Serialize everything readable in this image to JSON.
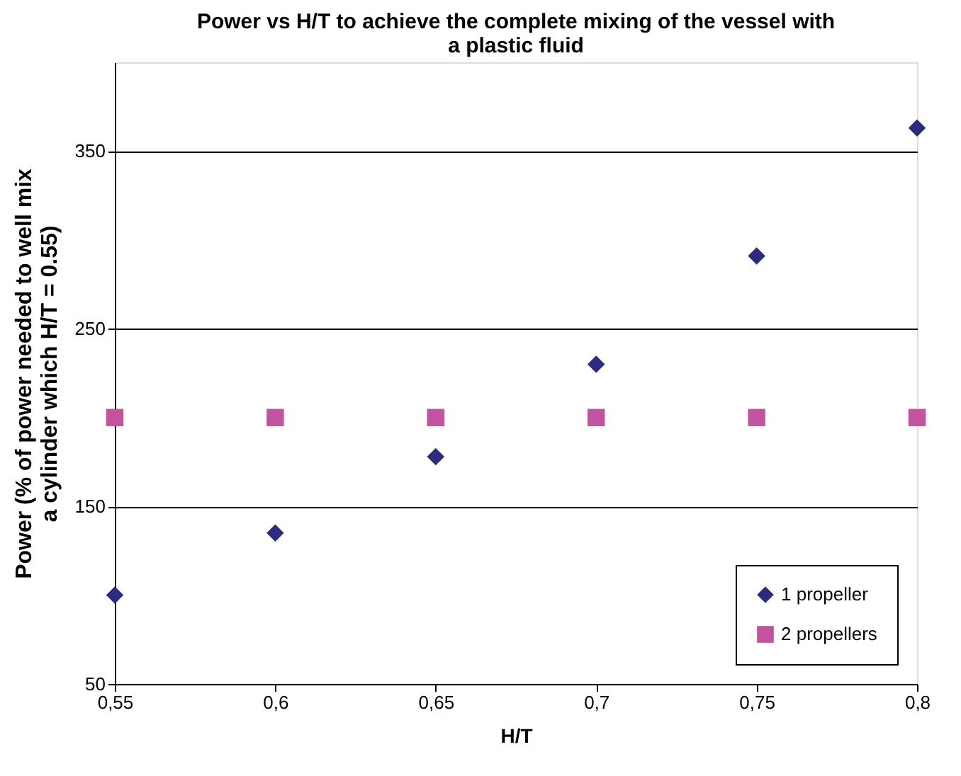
{
  "chart_data": {
    "type": "scatter",
    "title": "Power vs H/T to achieve the complete mixing of the vessel with a plastic fluid",
    "xlabel": "H/T",
    "ylabel": "Power (% of power needed to well mix a cylinder which H/T = 0.55)",
    "x": [
      0.55,
      0.6,
      0.65,
      0.7,
      0.75,
      0.8
    ],
    "series": [
      {
        "name": "1 propeller",
        "color": "#2e2a80",
        "marker": "diamond",
        "values": [
          100,
          135,
          178,
          230,
          291,
          363
        ]
      },
      {
        "name": "2 propellers",
        "color": "#c2549e",
        "marker": "square",
        "values": [
          200,
          200,
          200,
          200,
          200,
          200
        ]
      }
    ],
    "xlim": [
      0.55,
      0.8
    ],
    "xticks": [
      {
        "value": 0.55,
        "label": "0,55"
      },
      {
        "value": 0.6,
        "label": "0,6"
      },
      {
        "value": 0.65,
        "label": "0,65"
      },
      {
        "value": 0.7,
        "label": "0,7"
      },
      {
        "value": 0.75,
        "label": "0,75"
      },
      {
        "value": 0.8,
        "label": "0,8"
      }
    ],
    "ylim": [
      50,
      400
    ],
    "yticks": [
      50,
      150,
      250,
      350
    ],
    "grid": "y",
    "legend": "bottom right"
  }
}
